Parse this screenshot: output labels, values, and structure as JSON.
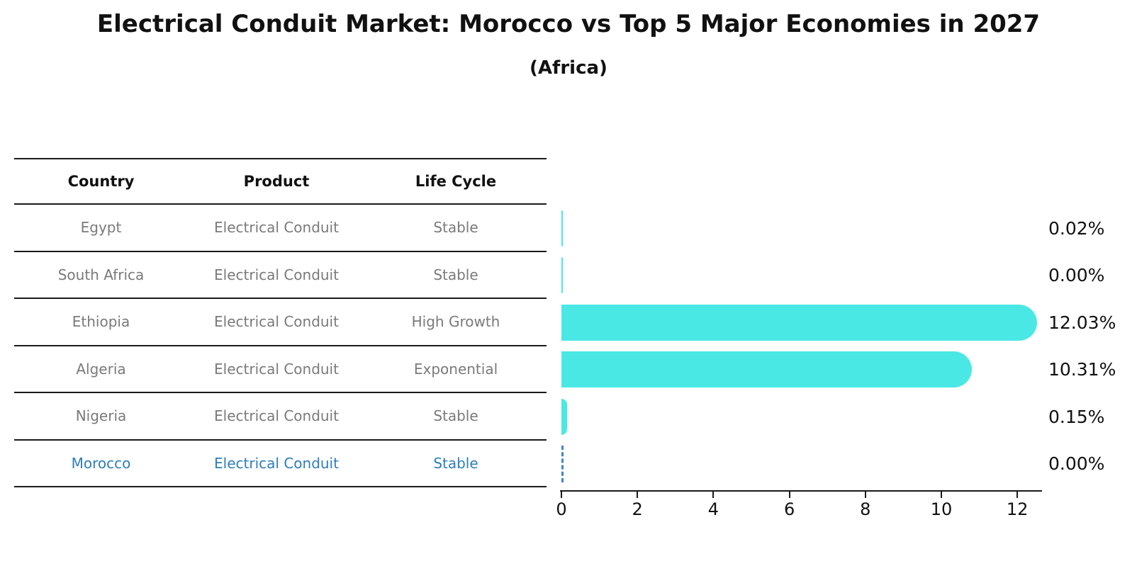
{
  "title": "Electrical Conduit Market: Morocco vs Top 5 Major Economies in 2027",
  "subtitle": "(Africa)",
  "table": {
    "headers": [
      "Country",
      "Product",
      "Life Cycle"
    ],
    "rows": [
      {
        "country": "Egypt",
        "product": "Electrical Conduit",
        "life_cycle": "Stable",
        "highlighted": false
      },
      {
        "country": "South Africa",
        "product": "Electrical Conduit",
        "life_cycle": "Stable",
        "highlighted": false
      },
      {
        "country": "Ethiopia",
        "product": "Electrical Conduit",
        "life_cycle": "High Growth",
        "highlighted": false
      },
      {
        "country": "Algeria",
        "product": "Electrical Conduit",
        "life_cycle": "Exponential",
        "highlighted": false
      },
      {
        "country": "Nigeria",
        "product": "Electrical Conduit",
        "life_cycle": "Stable",
        "highlighted": false
      },
      {
        "country": "Morocco",
        "product": "Electrical Conduit",
        "life_cycle": "Stable",
        "highlighted": true
      }
    ]
  },
  "chart_data": {
    "type": "bar",
    "orientation": "horizontal",
    "title": "Electrical Conduit Market: Morocco vs Top 5 Major Economies in 2027",
    "subtitle": "(Africa)",
    "categories": [
      "Egypt",
      "South Africa",
      "Ethiopia",
      "Algeria",
      "Nigeria",
      "Morocco"
    ],
    "values": [
      0.02,
      0.0,
      12.03,
      10.31,
      0.15,
      0.0
    ],
    "value_labels": [
      "0.02%",
      "0.00%",
      "12.03%",
      "10.31%",
      "0.15%",
      "0.00%"
    ],
    "x_ticks": [
      0,
      2,
      4,
      6,
      8,
      10,
      12
    ],
    "xlim": [
      0,
      12.65
    ],
    "grid": false,
    "legend": "none",
    "bar_color": "#4AE8E5",
    "highlight": {
      "category": "Morocco",
      "style": "dashed-outline-zero-bar",
      "color": "#3F86C9",
      "text_color": "#2E7EBC"
    }
  },
  "colors": {
    "background": "#ffffff",
    "bar": "#4AE8E5",
    "highlight_dash": "#3F86C9",
    "highlight_text": "#2E7EBC",
    "cell_text": "#7a7a7a",
    "heading_text": "#111111",
    "axis": "#1a1a1a"
  }
}
